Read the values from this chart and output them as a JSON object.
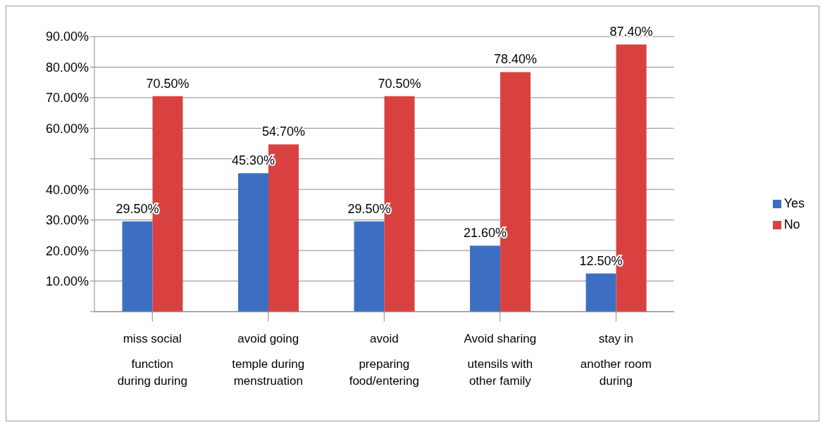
{
  "chart_data": {
    "type": "bar",
    "categories": [
      "miss social function during during",
      "avoid going temple during menstruation",
      "avoid preparing food/entering",
      "Avoid sharing utensils with other family",
      "stay in another room during"
    ],
    "series": [
      {
        "name": "Yes",
        "color": "#3c6fc2",
        "values": [
          29.5,
          45.3,
          29.5,
          21.6,
          12.5
        ],
        "value_labels": [
          "29.50%",
          "45.30%",
          "29.50%",
          "21.60%",
          "12.50%"
        ]
      },
      {
        "name": "No",
        "color": "#d94141",
        "values": [
          70.5,
          54.7,
          70.5,
          78.4,
          87.4
        ],
        "value_labels": [
          "70.50%",
          "54.70%",
          "70.50%",
          "78.40%",
          "87.40%"
        ]
      }
    ],
    "ylim": [
      0,
      90
    ],
    "yticks": [
      {
        "value": 0,
        "label": null
      },
      {
        "value": 10,
        "label": "10.00%"
      },
      {
        "value": 20,
        "label": "20.00%"
      },
      {
        "value": 30,
        "label": "30.00%"
      },
      {
        "value": 40,
        "label": "40.00%"
      },
      {
        "value": 50,
        "label": null
      },
      {
        "value": 60,
        "label": "60.00%"
      },
      {
        "value": 70,
        "label": "70.00%"
      },
      {
        "value": 80,
        "label": "80.00%"
      },
      {
        "value": 90,
        "label": "90.00%"
      }
    ],
    "grid": "y",
    "legend": "right"
  }
}
